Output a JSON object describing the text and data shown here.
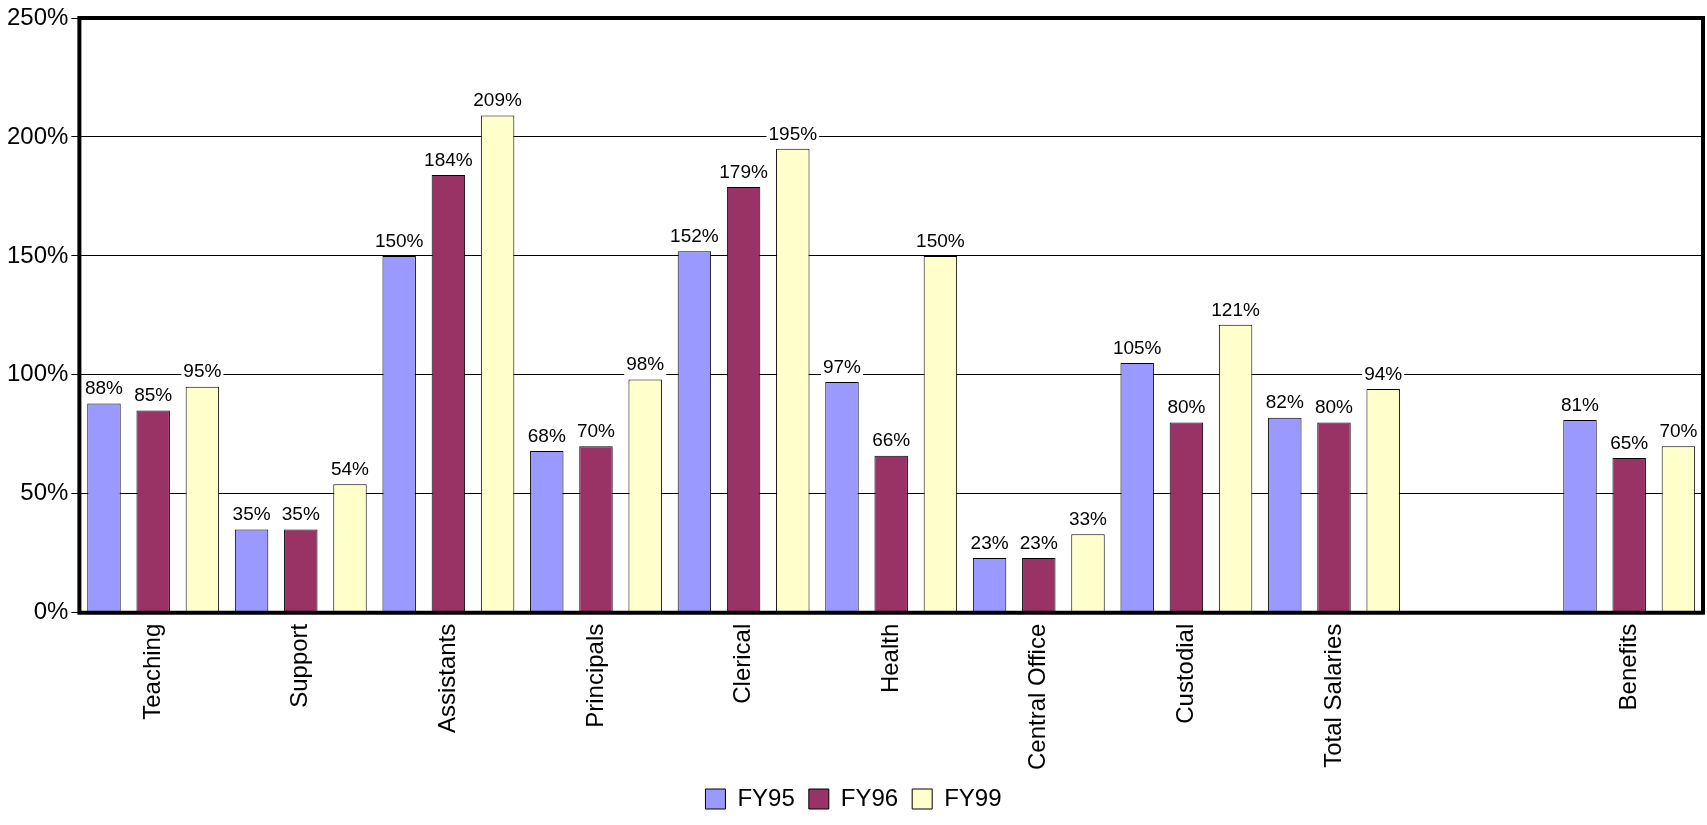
{
  "chart_data": {
    "type": "bar",
    "categories": [
      "Teaching",
      "Support",
      "Assistants",
      "Principals",
      "Clerical",
      "Health",
      "Central Office",
      "Custodial",
      "Total Salaries",
      null,
      "Benefits"
    ],
    "series": [
      {
        "name": "FY95",
        "color": "#9999ff",
        "values": [
          88,
          35,
          150,
          68,
          152,
          97,
          23,
          105,
          82,
          null,
          81
        ],
        "value_labels": [
          "88%",
          "35%",
          "150%",
          "68%",
          "152%",
          "97%",
          "23%",
          "105%",
          "82%",
          null,
          "81%"
        ]
      },
      {
        "name": "FY96",
        "color": "#993366",
        "values": [
          85,
          35,
          184,
          70,
          179,
          66,
          23,
          80,
          80,
          null,
          65
        ],
        "value_labels": [
          "85%",
          "35%",
          "184%",
          "70%",
          "179%",
          "66%",
          "23%",
          "80%",
          "80%",
          null,
          "65%"
        ]
      },
      {
        "name": "FY99",
        "color": "#ffffcc",
        "values": [
          95,
          54,
          209,
          98,
          195,
          150,
          33,
          121,
          94,
          null,
          70
        ],
        "value_labels": [
          "95%",
          "54%",
          "209%",
          "98%",
          "195%",
          "150%",
          "33%",
          "121%",
          "94%",
          null,
          "70%"
        ]
      }
    ],
    "ylim": [
      0,
      250
    ],
    "yticks": [
      {
        "value": 0,
        "label": "0%"
      },
      {
        "value": 50,
        "label": "50%"
      },
      {
        "value": 100,
        "label": "100%"
      },
      {
        "value": 150,
        "label": "150%"
      },
      {
        "value": 200,
        "label": "200%"
      },
      {
        "value": 250,
        "label": "250%"
      }
    ],
    "grid": "y",
    "legend": "bottom"
  }
}
